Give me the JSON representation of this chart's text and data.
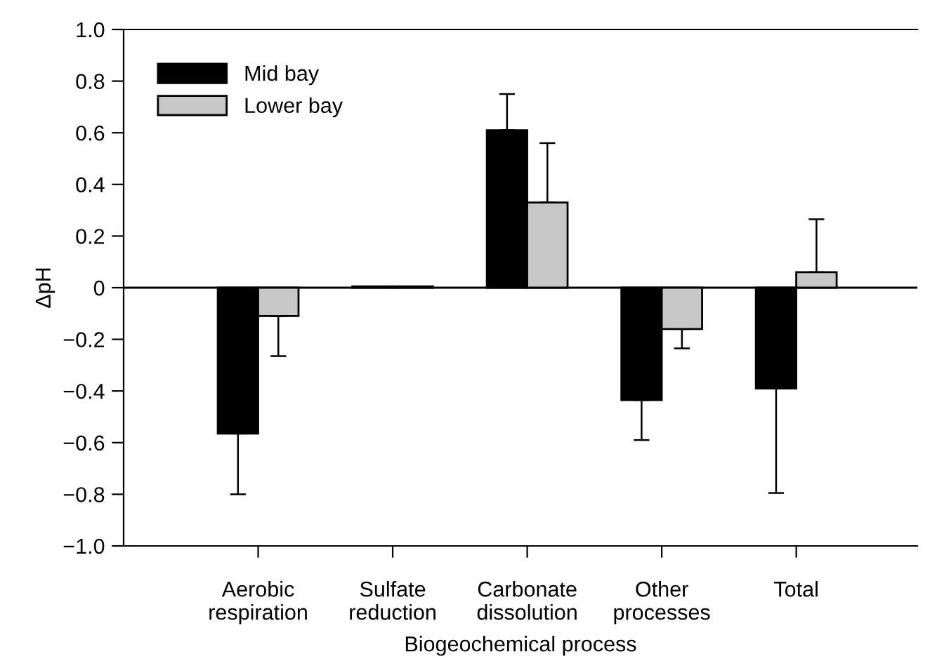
{
  "chart_data": {
    "type": "bar",
    "xlabel": "Biogeochemical process",
    "ylabel": "ΔpH",
    "categories": [
      "Aerobic\nrespiration",
      "Sulfate\nreduction",
      "Carbonate\ndissolution",
      "Other\nprocesses",
      "Total"
    ],
    "series": [
      {
        "name": "Mid bay",
        "color": "#000000",
        "values": [
          -0.565,
          0.005,
          0.61,
          -0.435,
          -0.39
        ],
        "errors": [
          [
            -0.8,
            -0.565
          ],
          null,
          [
            0.61,
            0.75
          ],
          [
            -0.59,
            -0.435
          ],
          [
            -0.795,
            -0.39
          ]
        ]
      },
      {
        "name": "Lower bay",
        "color": "#c8c8c8",
        "values": [
          -0.11,
          0.005,
          0.33,
          -0.16,
          0.06
        ],
        "errors": [
          [
            -0.265,
            -0.11
          ],
          null,
          [
            0.33,
            0.56
          ],
          [
            -0.235,
            -0.16
          ],
          [
            0.06,
            0.265
          ]
        ]
      }
    ],
    "ylim": [
      -1.0,
      1.0
    ],
    "yticks": [
      {
        "value": -1.0,
        "label": "−1.0"
      },
      {
        "value": -0.8,
        "label": "−0.8"
      },
      {
        "value": -0.6,
        "label": "−0.6"
      },
      {
        "value": -0.4,
        "label": "−0.4"
      },
      {
        "value": -0.2,
        "label": "−0.2"
      },
      0,
      0.2,
      0.4,
      0.6,
      0.8,
      {
        "value": 1.0,
        "label": "1.0"
      }
    ],
    "ref_lines": [
      {
        "axis": "y",
        "value": 0,
        "color": "#000000"
      }
    ],
    "grid": false,
    "legend": "top left"
  }
}
